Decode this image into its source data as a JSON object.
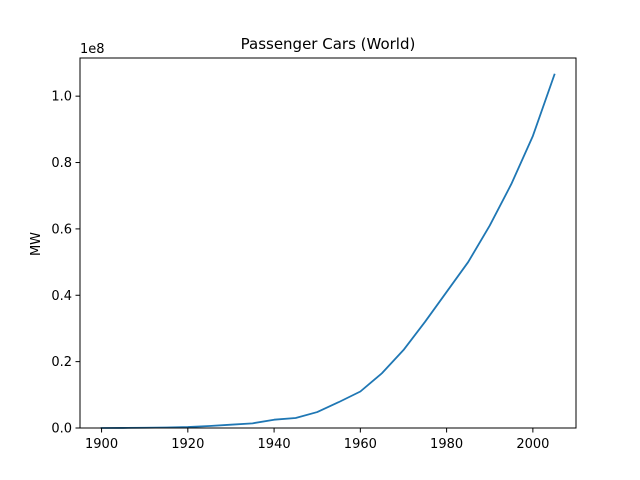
{
  "chart_data": {
    "type": "line",
    "title": "Passenger Cars (World)",
    "xlabel": "",
    "ylabel": "MW",
    "y_offset_text": "1e8",
    "xlim": [
      1895,
      2010
    ],
    "ylim": [
      0,
      111500000.0
    ],
    "x_ticks": [
      1900,
      1920,
      1940,
      1960,
      1980,
      2000
    ],
    "y_ticks": [
      0,
      20000000,
      40000000,
      60000000,
      80000000,
      100000000
    ],
    "y_tick_labels": [
      "0.0",
      "0.2",
      "0.4",
      "0.6",
      "0.8",
      "1.0"
    ],
    "x_tick_labels": [
      "1900",
      "1920",
      "1940",
      "1960",
      "1980",
      "2000"
    ],
    "grid": false,
    "series": [
      {
        "color": "#1f77b4",
        "x": [
          1900,
          1905,
          1910,
          1915,
          1920,
          1925,
          1930,
          1935,
          1940,
          1945,
          1950,
          1955,
          1960,
          1965,
          1970,
          1975,
          1980,
          1985,
          1990,
          1995,
          2000,
          2005
        ],
        "y": [
          0,
          20000,
          80000,
          150000,
          300000,
          600000,
          1000000,
          1400000,
          2500000,
          3000000,
          4800000,
          7800000,
          11000000,
          16500000,
          23500000,
          32000000,
          41000000,
          50000000,
          61000000,
          73500000,
          88000000,
          106500000
        ]
      }
    ]
  }
}
